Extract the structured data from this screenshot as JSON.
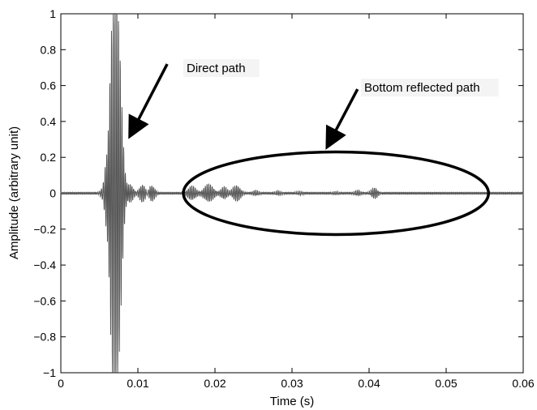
{
  "chart_data": {
    "type": "line",
    "xlabel": "Time (s)",
    "ylabel": "Amplitude (arbitrary unit)",
    "xlim": [
      0,
      0.06
    ],
    "ylim": [
      -1,
      1
    ],
    "x_ticks": [
      0,
      0.01,
      0.02,
      0.03,
      0.04,
      0.05,
      0.06
    ],
    "x_tick_labels": [
      "0",
      "0.01",
      "0.02",
      "0.03",
      "0.04",
      "0.05",
      "0.06"
    ],
    "y_ticks": [
      1,
      0.8,
      0.6,
      0.4,
      0.2,
      0,
      -0.2,
      -0.4,
      -0.6,
      -0.8,
      -1
    ],
    "y_tick_labels": [
      "1",
      "0.8",
      "0.6",
      "0.4",
      "0.2",
      "0",
      "−0.2",
      "−0.4",
      "−0.6",
      "−0.8",
      "−1"
    ],
    "grid": false,
    "line_color": "#555555",
    "signal": {
      "carrier_frequency_hz": 4500,
      "baseline_noise": 0.004,
      "packets": [
        {
          "center": 0.0068,
          "width": 0.0006,
          "amplitude": 0.98
        },
        {
          "center": 0.0075,
          "width": 0.00045,
          "amplitude": 0.6
        },
        {
          "center": 0.006,
          "width": 0.0003,
          "amplitude": 0.35
        },
        {
          "center": 0.009,
          "width": 0.0004,
          "amplitude": 0.05
        },
        {
          "center": 0.0106,
          "width": 0.0004,
          "amplitude": 0.05
        },
        {
          "center": 0.0118,
          "width": 0.0004,
          "amplitude": 0.045
        },
        {
          "center": 0.017,
          "width": 0.0005,
          "amplitude": 0.04
        },
        {
          "center": 0.0192,
          "width": 0.0006,
          "amplitude": 0.05
        },
        {
          "center": 0.0212,
          "width": 0.0004,
          "amplitude": 0.035
        },
        {
          "center": 0.0228,
          "width": 0.0005,
          "amplitude": 0.045
        },
        {
          "center": 0.0253,
          "width": 0.0004,
          "amplitude": 0.015
        },
        {
          "center": 0.0282,
          "width": 0.0004,
          "amplitude": 0.012
        },
        {
          "center": 0.031,
          "width": 0.0004,
          "amplitude": 0.01
        },
        {
          "center": 0.0357,
          "width": 0.0004,
          "amplitude": 0.008
        },
        {
          "center": 0.0385,
          "width": 0.0004,
          "amplitude": 0.015
        },
        {
          "center": 0.0407,
          "width": 0.0004,
          "amplitude": 0.03
        }
      ]
    },
    "annotations": [
      {
        "text": "Direct path",
        "arrow_from": [
          0.0138,
          0.72
        ],
        "arrow_to": [
          0.0091,
          0.33
        ]
      },
      {
        "text": "Bottom reflected path",
        "arrow_from": [
          0.0385,
          0.58
        ],
        "arrow_to": [
          0.0347,
          0.27
        ]
      }
    ],
    "ellipse": {
      "center": [
        0.0357,
        0.0
      ],
      "x_radius": 0.0198,
      "y_radius": 0.23
    }
  }
}
